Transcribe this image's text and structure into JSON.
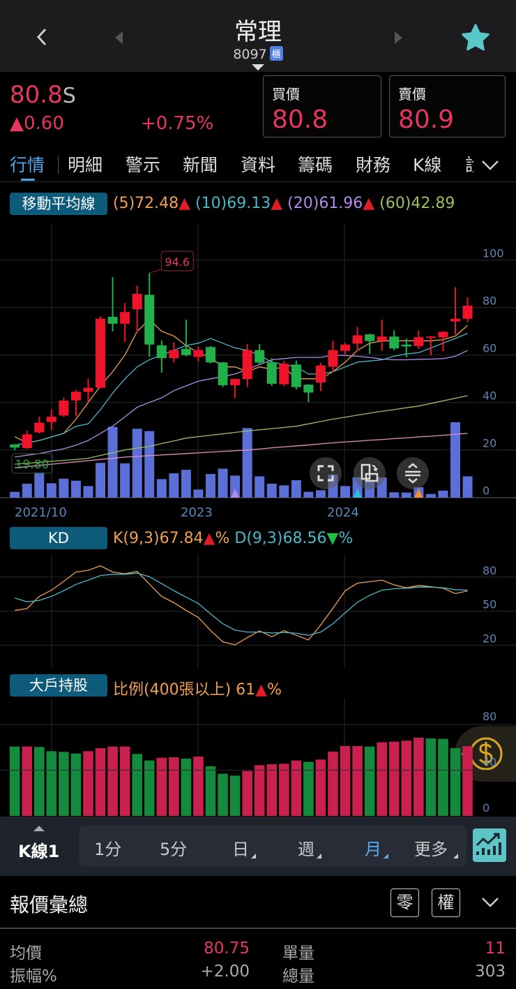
{
  "header": {
    "title": "常理",
    "code": "8097",
    "market_badge": "櫃",
    "back_icon": "chevron-left-icon",
    "favorite_icon": "star-icon",
    "favorite_color": "#5ac8c8"
  },
  "quote": {
    "last": "80.8",
    "last_suffix": "S",
    "change": "▲0.60",
    "change_pct": "+0.75%",
    "bid_label": "買價",
    "bid": "80.8",
    "ask_label": "賣價",
    "ask": "80.9",
    "up_color": "#e8365e"
  },
  "tabs": [
    {
      "label": "行情",
      "active": true
    },
    {
      "label": "明細"
    },
    {
      "label": "警示"
    },
    {
      "label": "新聞"
    },
    {
      "label": "資料"
    },
    {
      "label": "籌碼"
    },
    {
      "label": "財務"
    },
    {
      "label": "K線"
    },
    {
      "label": "診"
    }
  ],
  "ma_legend": {
    "title": "移動平均線",
    "ma5": "(5)72.48",
    "ma10": "(10)69.13",
    "ma20": "(20)61.96",
    "ma60": "(60)42.89",
    "arrow_up": "▲"
  },
  "kd_legend": {
    "title": "KD",
    "k": "K(9,3)67.84",
    "k_arrow": "▲",
    "d": "D(9,3)68.56",
    "d_arrow": "▼",
    "unit": "%"
  },
  "holder_legend": {
    "title": "大戶持股",
    "text": "比例(400張以上) 61",
    "arrow": "▲",
    "unit": "%"
  },
  "chart_data": [
    {
      "type": "candlestick",
      "title": "移動平均線",
      "x_tick_labels": [
        "2021/10",
        "2023",
        "2024"
      ],
      "y_ticks": [
        100,
        80,
        60,
        40,
        20,
        0
      ],
      "ylim": [
        0,
        100
      ],
      "grid": true,
      "high_label": "94.6",
      "low_label": "19.80",
      "open": [
        22.3,
        20.8,
        27.4,
        31.8,
        34.5,
        40.9,
        44.5,
        46.2,
        76.1,
        73.2,
        79.3,
        85.4,
        64.1,
        58.7,
        62.6,
        59.2,
        63.4,
        56.9,
        47.3,
        49.9,
        62.1,
        57,
        47.7,
        56,
        47.5,
        48.4,
        55.1,
        61.8,
        64.8,
        68.7,
        66,
        67.8,
        64.4,
        63.8,
        67.2,
        67.5,
        74.2,
        75.3
      ],
      "high": [
        22.5,
        28.1,
        34,
        37,
        42.1,
        45.2,
        49.9,
        76.3,
        92.8,
        81.9,
        89.2,
        94.6,
        66.2,
        65.4,
        74.9,
        63.6,
        63.8,
        57.1,
        50.1,
        64.6,
        64.6,
        58.7,
        57.5,
        57.7,
        47.8,
        56.8,
        66,
        65.1,
        71.9,
        69,
        74.9,
        70.4,
        67,
        70.3,
        68,
        70,
        88.6,
        84.3
      ],
      "low": [
        19.8,
        20.5,
        27,
        28.4,
        34,
        34.2,
        40.1,
        46,
        70,
        65.6,
        69.5,
        59.2,
        52.6,
        56.9,
        59.5,
        57.2,
        56.5,
        46.5,
        41.9,
        46.5,
        56,
        47,
        47,
        45.5,
        40.1,
        44.8,
        52.8,
        60.2,
        61.8,
        60.5,
        61.8,
        62,
        59,
        62.6,
        59.9,
        61.6,
        68.7,
        73.9
      ],
      "close": [
        21,
        26.6,
        31.5,
        34,
        40.8,
        44.5,
        46.2,
        75.3,
        73.2,
        78.1,
        85.8,
        64.4,
        58.7,
        62.1,
        60,
        62.1,
        56.9,
        47.3,
        49.9,
        62.1,
        56.8,
        47.9,
        56.3,
        46.5,
        44.2,
        55.6,
        62.1,
        64.4,
        68.3,
        65.9,
        67.8,
        62.8,
        63.6,
        67.5,
        67.8,
        69.8,
        75.3,
        80.8
      ],
      "volume": [
        25,
        60,
        108,
        62,
        82,
        73,
        50,
        150,
        305,
        148,
        297,
        287,
        80,
        105,
        120,
        35,
        102,
        125,
        95,
        300,
        92,
        60,
        53,
        75,
        25,
        32,
        100,
        50,
        88,
        75,
        87,
        23,
        22,
        45,
        16,
        30,
        325,
        92
      ],
      "series": [
        {
          "name": "(5)",
          "color": "#f0a050",
          "values": [
            25.6,
            23,
            24,
            25.5,
            27,
            33,
            40,
            47,
            53,
            60,
            70,
            75,
            70,
            68,
            64,
            61,
            59,
            55,
            55,
            53,
            55,
            54,
            55,
            50,
            50,
            50,
            53,
            57,
            62,
            65,
            66,
            66,
            66,
            66,
            66,
            66.5,
            68,
            72.48
          ]
        },
        {
          "name": "(10)",
          "color": "#4bb8c8",
          "values": [
            22,
            23,
            24,
            25.5,
            27,
            30,
            31,
            37,
            44,
            50,
            55,
            58,
            60,
            62,
            64,
            65,
            67,
            65,
            63,
            62,
            60,
            57,
            56,
            55,
            52,
            52,
            53,
            55,
            57,
            57.5,
            58,
            59.5,
            60.5,
            61,
            63,
            65,
            67,
            69.13
          ]
        },
        {
          "name": "(20)",
          "color": "#b08ce8",
          "values": [
            17,
            17.8,
            18.5,
            19.5,
            20.5,
            22,
            24,
            27,
            30,
            34,
            38,
            40,
            42,
            45,
            47,
            49,
            50,
            51,
            52,
            54,
            56,
            58,
            58.5,
            59,
            59,
            59,
            60,
            59.8,
            59.5,
            59,
            58.3,
            58,
            58,
            58.2,
            58.3,
            58.5,
            59.5,
            61.96
          ]
        },
        {
          "name": "(60)",
          "color": "#9cc060",
          "values": [
            14,
            14.4,
            14.8,
            15.2,
            15.6,
            16,
            16.5,
            17.7,
            18.8,
            20,
            20.8,
            21.5,
            22.7,
            23.8,
            25,
            25.6,
            26.2,
            26.8,
            27.4,
            28,
            28.5,
            29,
            29.5,
            30,
            31,
            32,
            33,
            33.8,
            34.7,
            35.5,
            36.3,
            37,
            37.8,
            38.5,
            39.6,
            40.7,
            41.8,
            42.89
          ]
        },
        {
          "color": "#e890c0",
          "values": [
            12.5,
            13,
            13.5,
            14,
            14.5,
            15,
            15.5,
            16,
            16.5,
            17,
            17.3,
            17.6,
            17.9,
            18.2,
            18.5,
            18.8,
            19.1,
            19.4,
            19.7,
            20,
            20.4,
            20.9,
            21.3,
            21.7,
            22.1,
            22.6,
            23,
            23.4,
            23.7,
            24.1,
            24.4,
            24.8,
            25.1,
            25.5,
            25.8,
            26.2,
            26.6,
            27
          ]
        }
      ],
      "markers": [
        {
          "index": 18,
          "color": "#b08ce8"
        },
        {
          "index": 28,
          "color": "#28c0e0"
        },
        {
          "index": 33,
          "color": "#f09030"
        }
      ],
      "colors": {
        "up": "#f0142a",
        "down": "#22b04b",
        "volume": "#5b6fd6"
      }
    },
    {
      "type": "line",
      "title": "KD",
      "y_ticks": [
        80,
        50,
        20
      ],
      "series": [
        {
          "name": "K(9,3)",
          "color": "#f0a050",
          "values": [
            50.7,
            52.3,
            63,
            68.5,
            76.3,
            84.5,
            86,
            90,
            84.5,
            83,
            85,
            74,
            63,
            57.5,
            50.7,
            44.5,
            33,
            23,
            20.4,
            26.7,
            32.7,
            27.5,
            32.9,
            28.8,
            24.7,
            37.8,
            52.7,
            68,
            74.7,
            76,
            77.3,
            73.2,
            70.6,
            72.6,
            71.6,
            70.2,
            65.5,
            67.84
          ]
        },
        {
          "name": "D(9,3)",
          "color": "#4bb8c8",
          "values": [
            61.6,
            58.3,
            59.5,
            63,
            68.1,
            73.6,
            77.3,
            81.4,
            82.5,
            82.5,
            83.5,
            80.4,
            74.3,
            68.1,
            62.4,
            56.8,
            47.6,
            39,
            33.3,
            31.6,
            31.6,
            30.8,
            31.2,
            30.6,
            28.8,
            31.6,
            39,
            48.6,
            57.9,
            64,
            68.5,
            69.8,
            70.2,
            71.2,
            71.2,
            70.6,
            68.9,
            68.56
          ]
        }
      ]
    },
    {
      "type": "bar",
      "title": "大戶持股",
      "y_ticks": [
        80,
        40,
        0
      ],
      "ylim": [
        0,
        80
      ],
      "values": [
        60.7,
        60.7,
        60.3,
        56.6,
        56,
        54.6,
        56.6,
        59.3,
        60.7,
        60.7,
        54.2,
        48.5,
        50.9,
        51.3,
        50.1,
        51.9,
        43.4,
        36.9,
        35.2,
        39.3,
        44.4,
        45.2,
        45.6,
        48.5,
        47.3,
        49.3,
        56.2,
        61.1,
        61.1,
        60.7,
        64.4,
        65,
        65.8,
        68.4,
        67.8,
        67.4,
        59.3,
        61
      ],
      "colors": {
        "up": "#c8204f",
        "down": "#138a3c"
      }
    }
  ],
  "chart_controls": [
    {
      "icon": "fullscreen-icon"
    },
    {
      "icon": "rotate-icon"
    },
    {
      "icon": "compress-icon"
    }
  ],
  "toolbar": {
    "kline": "K線1",
    "periods": [
      {
        "label": "1分"
      },
      {
        "label": "5分"
      },
      {
        "label": "日"
      },
      {
        "label": "週"
      },
      {
        "label": "月",
        "active": true
      },
      {
        "label": "更多"
      }
    ],
    "chart_icon": "trend-chart-icon"
  },
  "summary": {
    "title": "報價彙總",
    "odd_lot": "零",
    "rights": "權",
    "rows": [
      {
        "l1": "均價",
        "v1": "80.75",
        "l2": "單量",
        "v2": "11"
      },
      {
        "l1": "振幅%",
        "v1": "+2.00",
        "l2": "總量",
        "v2": "303"
      }
    ]
  }
}
